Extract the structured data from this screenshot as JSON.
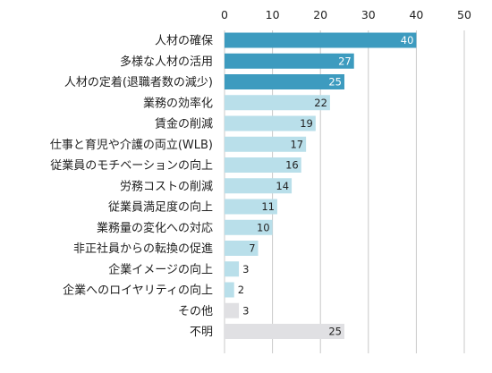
{
  "chart_data": {
    "type": "bar",
    "orientation": "horizontal",
    "title": "",
    "xlabel": "",
    "ylabel": "",
    "xlim": [
      0,
      50
    ],
    "xticks": [
      0,
      10,
      20,
      30,
      40,
      50
    ],
    "grid": true,
    "categories": [
      "人材の確保",
      "多様な人材の活用",
      "人材の定着(退職者数の減少)",
      "業務の効率化",
      "賃金の削減",
      "仕事と育児や介護の両立(WLB)",
      "従業員のモチベーションの向上",
      "労務コストの削減",
      "従業員満足度の向上",
      "業務量の変化への対応",
      "非正社員からの転換の促進",
      "企業イメージの向上",
      "企業へのロイヤリティの向上",
      "その他",
      "不明"
    ],
    "values": [
      40,
      27,
      25,
      22,
      19,
      17,
      16,
      14,
      11,
      10,
      7,
      3,
      2,
      3,
      25
    ],
    "colors": {
      "dark": "#3d9bbf",
      "light": "#b9dfea",
      "gray": "#e0e0e3",
      "grid": "#c8c8c8",
      "value_label_on_dark": "#ffffff",
      "value_label_on_light": "#222222"
    },
    "bar_color_groups": [
      "dark",
      "dark",
      "dark",
      "light",
      "light",
      "light",
      "light",
      "light",
      "light",
      "light",
      "light",
      "light",
      "light",
      "gray",
      "gray"
    ]
  }
}
